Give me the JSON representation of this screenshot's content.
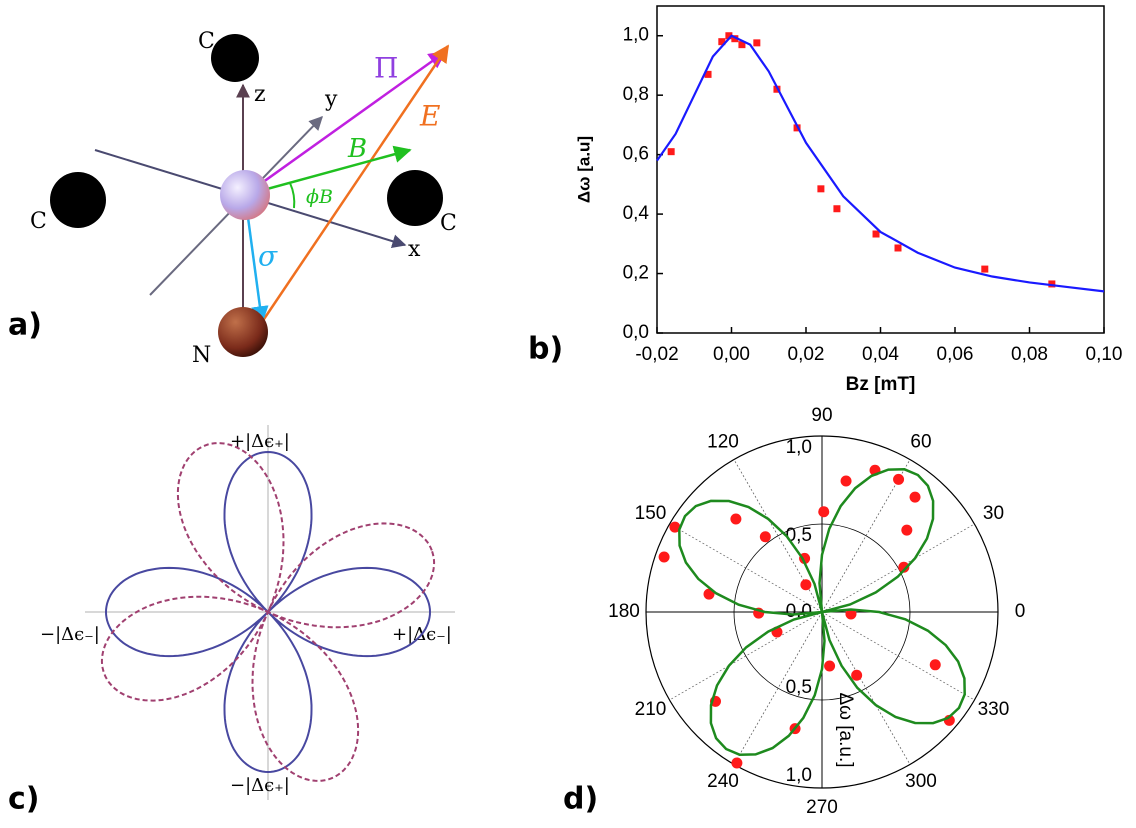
{
  "panels": {
    "a": "a)",
    "b": "b)",
    "c": "c)",
    "d": "d)"
  },
  "diagram_a": {
    "atoms": [
      "C",
      "C",
      "C",
      "N"
    ],
    "axes": [
      "z",
      "y",
      "x"
    ],
    "vectors": [
      "Π",
      "B",
      "E",
      "σ"
    ],
    "angle": "ϕB"
  },
  "diagram_c": {
    "labels": [
      "+|Δϵ₊|",
      "−|Δϵ₋|",
      "+|Δϵ₋|",
      "−|Δϵ₊|"
    ]
  },
  "chart_data": [
    {
      "type": "scatter",
      "xlabel": "Bz [mT]",
      "ylabel": "Δω [a.u]",
      "xlim": [
        -0.02,
        0.1
      ],
      "ylim": [
        0,
        1.1
      ],
      "xticks": [
        {
          "value": -0.02,
          "label": "-0,02"
        },
        {
          "value": 0,
          "label": "0,00"
        },
        {
          "value": 0.02,
          "label": "0,02"
        },
        {
          "value": 0.04,
          "label": "0,04"
        },
        {
          "value": 0.06,
          "label": "0,06"
        },
        {
          "value": 0.08,
          "label": "0,08"
        },
        {
          "value": 0.1,
          "label": "0,10"
        }
      ],
      "yticks": [
        {
          "value": 0,
          "label": "0,0"
        },
        {
          "value": 0.2,
          "label": "0,2"
        },
        {
          "value": 0.4,
          "label": "0,4"
        },
        {
          "value": 0.6,
          "label": "0,6"
        },
        {
          "value": 0.8,
          "label": "0,8"
        },
        {
          "value": 1,
          "label": "1,0"
        }
      ],
      "series": [
        {
          "type": "scatter",
          "color": "#ff1a1a",
          "x": [
            -0.0162,
            -0.0063,
            -0.0026,
            -0.0007,
            0.0009,
            0.0028,
            0.0068,
            0.0122,
            0.0176,
            0.024,
            0.0283,
            0.0388,
            0.0447,
            0.068,
            0.086
          ],
          "values": [
            0.61,
            0.87,
            0.98,
            1.0,
            0.99,
            0.97,
            0.976,
            0.82,
            0.69,
            0.485,
            0.418,
            0.333,
            0.286,
            0.215,
            0.165
          ]
        },
        {
          "type": "line",
          "color": "#1a1aff",
          "x": [
            -0.02,
            -0.015,
            -0.01,
            -0.005,
            0,
            0.005,
            0.01,
            0.015,
            0.02,
            0.03,
            0.04,
            0.05,
            0.06,
            0.07,
            0.08,
            0.09,
            0.1
          ],
          "values": [
            0.58,
            0.67,
            0.8,
            0.93,
            1.0,
            0.97,
            0.88,
            0.76,
            0.64,
            0.46,
            0.34,
            0.27,
            0.22,
            0.19,
            0.17,
            0.155,
            0.14
          ]
        }
      ]
    },
    {
      "type": "polar",
      "ylabel": "Δω [a.u.]",
      "rlim": [
        0,
        1
      ],
      "rticks": [
        {
          "value": 0,
          "label": "0,0"
        },
        {
          "value": 0.5,
          "label": "0,5"
        },
        {
          "value": 1,
          "label": "1,0"
        }
      ],
      "thetaticks": [
        0,
        30,
        60,
        90,
        120,
        150,
        180,
        210,
        240,
        270,
        300,
        330
      ],
      "series": [
        {
          "type": "scatter",
          "color": "#ff1a1a",
          "theta": [
            69.5,
            79.6,
            89,
            60,
            51,
            44,
            28.7,
            120.6,
            108,
            127,
            132.8,
            150,
            160.8,
            171,
            181,
            204,
            220,
            240.6,
            257,
            278,
            298.7,
            335,
            319.6,
            356
          ],
          "values": [
            0.86,
            0.757,
            0.57,
            0.87,
            0.84,
            0.67,
            0.53,
            0.18,
            0.32,
            0.535,
            0.72,
            0.965,
            0.95,
            0.65,
            0.36,
            0.28,
            0.79,
            0.985,
            0.68,
            0.31,
            0.41,
            0.71,
            0.95,
            0.165
          ]
        },
        {
          "type": "line",
          "color": "#1e8a1e",
          "theta": [
            0,
            5,
            10,
            15,
            20,
            25,
            30,
            35,
            40,
            45,
            50,
            55,
            60,
            65,
            70,
            75,
            80,
            85,
            90,
            95,
            100,
            105,
            110,
            115,
            120,
            125,
            130,
            135,
            140,
            145,
            150,
            155,
            160,
            165,
            170,
            175,
            180,
            185,
            190,
            195,
            200,
            205,
            210,
            215,
            220,
            225,
            230,
            235,
            240,
            245,
            250,
            255,
            260,
            265,
            270,
            275,
            280,
            285,
            290,
            295,
            300,
            305,
            310,
            315,
            320,
            325,
            330,
            335,
            340,
            345,
            350,
            355
          ],
          "values": [
            0.325,
            0.165,
            0,
            0.165,
            0.325,
            0.475,
            0.611,
            0.728,
            0.823,
            0.893,
            0.936,
            0.95,
            0.936,
            0.893,
            0.823,
            0.728,
            0.611,
            0.475,
            0.325,
            0.165,
            0,
            0.165,
            0.325,
            0.475,
            0.611,
            0.728,
            0.823,
            0.893,
            0.936,
            0.95,
            0.936,
            0.893,
            0.823,
            0.728,
            0.611,
            0.475,
            0.325,
            0.165,
            0,
            0.165,
            0.325,
            0.475,
            0.611,
            0.728,
            0.823,
            0.893,
            0.936,
            0.95,
            0.936,
            0.893,
            0.823,
            0.728,
            0.611,
            0.475,
            0.325,
            0.165,
            0,
            0.165,
            0.325,
            0.475,
            0.611,
            0.728,
            0.823,
            0.893,
            0.936,
            0.95,
            0.936,
            0.893,
            0.823,
            0.728,
            0.611,
            0.475
          ]
        }
      ]
    }
  ]
}
